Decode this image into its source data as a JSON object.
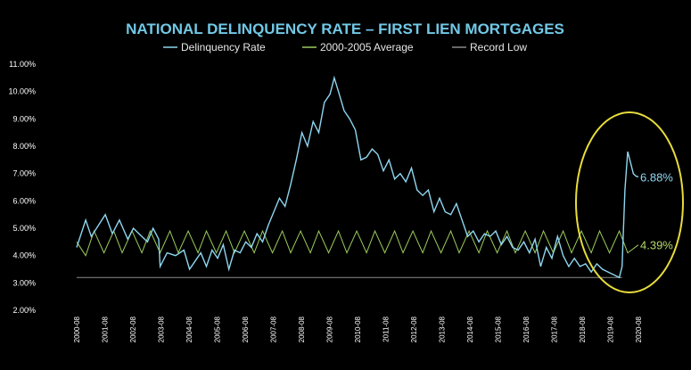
{
  "chart_data": {
    "type": "line",
    "title": "NATIONAL DELINQUENCY RATE – FIRST LIEN MORTGAGES",
    "xlabel": "",
    "ylabel": "",
    "ylim": [
      2.0,
      11.0
    ],
    "y_ticks": [
      "2.00%",
      "3.00%",
      "4.00%",
      "5.00%",
      "6.00%",
      "7.00%",
      "8.00%",
      "9.00%",
      "10.00%",
      "11.00%"
    ],
    "x_ticks": [
      "2000-08",
      "2001-08",
      "2002-08",
      "2003-08",
      "2004-08",
      "2005-08",
      "2006-08",
      "2007-08",
      "2008-08",
      "2009-08",
      "2010-08",
      "2011-08",
      "2012-08",
      "2013-08",
      "2014-08",
      "2015-08",
      "2016-08",
      "2017-08",
      "2018-08",
      "2019-08",
      "2020-08"
    ],
    "grid": false,
    "legend_position": "top",
    "colors": {
      "delinquency": "#8fd6f0",
      "average": "#9ccc5a",
      "record_low": "#8a8a8a",
      "highlight": "#e8dc3c",
      "annot_blue": "#8fd6f0",
      "annot_green": "#b6d86a"
    },
    "series": [
      {
        "name": "Delinquency Rate",
        "x": [
          2000.58,
          2000.9,
          2001.1,
          2001.35,
          2001.6,
          2001.85,
          2002.1,
          2002.4,
          2002.6,
          2002.9,
          2003.1,
          2003.3,
          2003.5,
          2003.55,
          2003.8,
          2004.1,
          2004.4,
          2004.6,
          2004.8,
          2005.0,
          2005.2,
          2005.4,
          2005.6,
          2005.8,
          2006.0,
          2006.2,
          2006.4,
          2006.6,
          2006.8,
          2007.0,
          2007.2,
          2007.4,
          2007.6,
          2007.8,
          2008.0,
          2008.2,
          2008.4,
          2008.6,
          2008.8,
          2009.0,
          2009.2,
          2009.4,
          2009.6,
          2009.75,
          2009.9,
          2010.1,
          2010.3,
          2010.5,
          2010.7,
          2010.9,
          2011.1,
          2011.3,
          2011.5,
          2011.7,
          2011.9,
          2012.1,
          2012.3,
          2012.5,
          2012.7,
          2012.9,
          2013.1,
          2013.3,
          2013.5,
          2013.7,
          2013.9,
          2014.1,
          2014.3,
          2014.5,
          2014.7,
          2014.9,
          2015.1,
          2015.3,
          2015.5,
          2015.7,
          2015.9,
          2016.1,
          2016.3,
          2016.5,
          2016.7,
          2016.9,
          2017.1,
          2017.3,
          2017.5,
          2017.7,
          2017.9,
          2018.1,
          2018.3,
          2018.5,
          2018.7,
          2018.9,
          2019.1,
          2019.3,
          2019.5,
          2019.7,
          2019.9,
          2020.0,
          2020.1,
          2020.2,
          2020.3,
          2020.4,
          2020.5,
          2020.58
        ],
        "values": [
          4.3,
          5.3,
          4.7,
          5.1,
          5.5,
          4.8,
          5.3,
          4.6,
          5.0,
          4.7,
          4.5,
          5.0,
          4.6,
          3.6,
          4.1,
          4.0,
          4.2,
          3.5,
          3.8,
          4.1,
          3.6,
          4.2,
          3.9,
          4.4,
          3.5,
          4.2,
          4.1,
          4.5,
          4.3,
          4.8,
          4.5,
          5.1,
          5.6,
          6.1,
          5.8,
          6.6,
          7.5,
          8.5,
          8.0,
          8.9,
          8.5,
          9.6,
          9.9,
          10.5,
          10.0,
          9.3,
          9.0,
          8.6,
          7.5,
          7.6,
          7.9,
          7.7,
          7.1,
          7.5,
          6.8,
          7.0,
          6.7,
          7.2,
          6.4,
          6.2,
          6.4,
          5.6,
          6.1,
          5.6,
          5.5,
          5.9,
          5.3,
          4.7,
          4.9,
          4.5,
          4.8,
          4.7,
          4.9,
          4.4,
          4.7,
          4.3,
          4.2,
          4.5,
          4.1,
          4.6,
          3.6,
          4.3,
          3.9,
          4.7,
          4.0,
          3.6,
          3.9,
          3.6,
          3.7,
          3.4,
          3.7,
          3.5,
          3.4,
          3.3,
          3.2,
          3.6,
          6.4,
          7.8,
          7.4,
          7.0,
          6.9,
          6.88
        ]
      },
      {
        "name": "2000-2005 Average",
        "x": [
          2000.58,
          2000.9,
          2001.2,
          2001.55,
          2001.9,
          2002.2,
          2002.55,
          2002.9,
          2003.2,
          2003.55,
          2003.9,
          2004.2,
          2004.55,
          2004.9,
          2005.2,
          2005.55,
          2005.9,
          2006.2,
          2006.55,
          2006.9,
          2007.2,
          2007.55,
          2007.9,
          2008.2,
          2008.55,
          2008.9,
          2009.2,
          2009.55,
          2009.9,
          2010.2,
          2010.55,
          2010.9,
          2011.2,
          2011.55,
          2011.9,
          2012.2,
          2012.55,
          2012.9,
          2013.2,
          2013.55,
          2013.9,
          2014.2,
          2014.55,
          2014.9,
          2015.2,
          2015.55,
          2015.9,
          2016.2,
          2016.55,
          2016.9,
          2017.2,
          2017.55,
          2017.9,
          2018.2,
          2018.55,
          2018.9,
          2019.2,
          2019.55,
          2019.9,
          2020.2,
          2020.58
        ],
        "values": [
          4.5,
          4.0,
          4.9,
          4.1,
          4.9,
          4.1,
          4.9,
          4.1,
          4.9,
          4.1,
          4.9,
          4.1,
          4.9,
          4.1,
          4.9,
          4.1,
          4.9,
          4.1,
          4.9,
          4.1,
          4.9,
          4.1,
          4.9,
          4.1,
          4.9,
          4.1,
          4.9,
          4.1,
          4.9,
          4.1,
          4.9,
          4.1,
          4.9,
          4.1,
          4.9,
          4.1,
          4.9,
          4.1,
          4.9,
          4.1,
          4.9,
          4.1,
          4.9,
          4.1,
          4.9,
          4.1,
          4.9,
          4.1,
          4.9,
          4.1,
          4.9,
          4.1,
          4.9,
          4.1,
          4.9,
          4.1,
          4.9,
          4.1,
          4.9,
          4.1,
          4.39
        ]
      },
      {
        "name": "Record Low",
        "x": [
          2000.58,
          2020.0
        ],
        "values": [
          3.2,
          3.2
        ]
      }
    ],
    "annotations": [
      {
        "text": "6.88%",
        "series": "Delinquency Rate"
      },
      {
        "text": "4.39%",
        "series": "2000-2005 Average"
      }
    ]
  }
}
